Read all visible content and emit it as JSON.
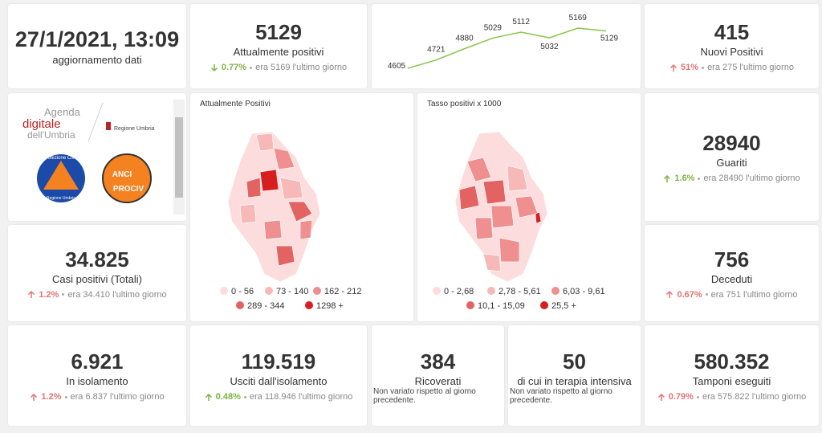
{
  "update": {
    "datetime": "27/1/2021, 13:09",
    "label": "aggiornamento dati"
  },
  "stats": [
    {
      "value": "5129",
      "label": "Attualmente positivi",
      "change": "0.77%",
      "direction": "down",
      "color": "#7cb342",
      "note": "era 5169 l'ultimo giorno"
    },
    {
      "value": "415",
      "label": "Nuovi Positivi",
      "change": "51%",
      "direction": "up",
      "color": "#e57373",
      "note": "era 275 l'ultimo giorno"
    },
    {
      "value": "28940",
      "label": "Guariti",
      "change": "1.6%",
      "direction": "up",
      "color": "#7cb342",
      "note": "era 28490 l'ultimo giorno"
    },
    {
      "value": "34.825",
      "label": "Casi positivi (Totali)",
      "change": "1.2%",
      "direction": "up",
      "color": "#e57373",
      "note": "era 34.410 l'ultimo giorno"
    },
    {
      "value": "756",
      "label": "Deceduti",
      "change": "0.67%",
      "direction": "up",
      "color": "#e57373",
      "note": "era 751 l'ultimo giorno"
    },
    {
      "value": "6.921",
      "label": "In isolamento",
      "change": "1.2%",
      "direction": "up",
      "color": "#e57373",
      "note": "era 6.837 l'ultimo giorno"
    },
    {
      "value": "119.519",
      "label": "Usciti dall'isolamento",
      "change": "0.48%",
      "direction": "up",
      "color": "#7cb342",
      "note": "era 118.946 l'ultimo giorno"
    },
    {
      "value": "580.352",
      "label": "Tamponi eseguiti",
      "change": "0.79%",
      "direction": "up",
      "color": "#e57373",
      "note": "era 575.822 l'ultimo giorno"
    }
  ],
  "hospital": [
    {
      "value": "384",
      "label": "Ricoverati",
      "note": "Non variato rispetto al giorno precedente."
    },
    {
      "value": "50",
      "label": "di cui in terapia intensiva",
      "note": "Non variato rispetto al giorno precedente."
    }
  ],
  "chart_data": {
    "type": "line",
    "values": [
      4605,
      4721,
      4880,
      5029,
      5112,
      5032,
      5169,
      5129
    ],
    "color": "#8bc34a"
  },
  "maps": [
    {
      "title": "Attualmente Positivi",
      "legend": [
        {
          "label": "0 - 56",
          "color": "#fcdcdc"
        },
        {
          "label": "73 - 140",
          "color": "#f7b8b8"
        },
        {
          "label": "162 - 212",
          "color": "#ef8f8f"
        },
        {
          "label": "289 - 344",
          "color": "#e36363"
        },
        {
          "label": "1298 +",
          "color": "#d81e1e"
        }
      ]
    },
    {
      "title": "Tasso positivi x 1000",
      "legend": [
        {
          "label": "0 - 2,68",
          "color": "#fcdcdc"
        },
        {
          "label": "2,78 - 5,61",
          "color": "#f7b8b8"
        },
        {
          "label": "6,03 - 9,61",
          "color": "#ef8f8f"
        },
        {
          "label": "10,1 - 15,09",
          "color": "#e36363"
        },
        {
          "label": "25,5 +",
          "color": "#d81e1e"
        }
      ]
    }
  ],
  "logos": {
    "agenda": [
      "Agenda",
      "digitale",
      "dell'Umbria"
    ],
    "regione": "Regione Umbria",
    "protezione": [
      "Protezione Civile",
      "Regione Umbria"
    ],
    "anci": [
      "ANCI",
      "PROCIV"
    ]
  }
}
